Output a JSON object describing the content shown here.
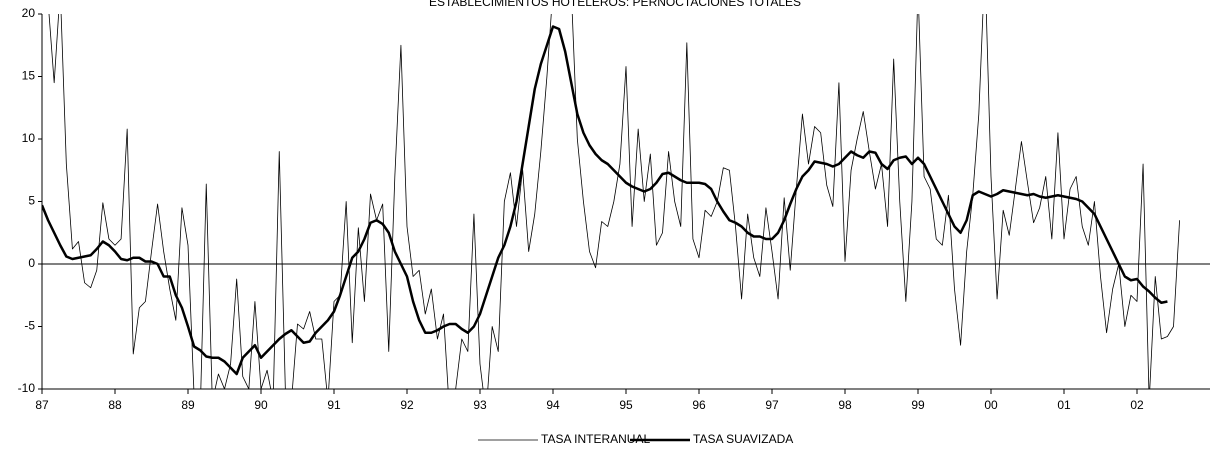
{
  "chart_data": {
    "type": "line",
    "title": "ESTABLECIMIENTOS HOTELEROS: PERNOCTACIONES TOTALES",
    "categories": [
      "87",
      null,
      null,
      null,
      null,
      null,
      null,
      null,
      null,
      null,
      null,
      null,
      "88",
      null,
      null,
      null,
      null,
      null,
      null,
      null,
      null,
      null,
      null,
      null,
      "89",
      null,
      null,
      null,
      null,
      null,
      null,
      null,
      null,
      null,
      null,
      null,
      "90",
      null,
      null,
      null,
      null,
      null,
      null,
      null,
      null,
      null,
      null,
      null,
      "91",
      null,
      null,
      null,
      null,
      null,
      null,
      null,
      null,
      null,
      null,
      null,
      "92",
      null,
      null,
      null,
      null,
      null,
      null,
      null,
      null,
      null,
      null,
      null,
      "93",
      null,
      null,
      null,
      null,
      null,
      null,
      null,
      null,
      null,
      null,
      null,
      "94",
      null,
      null,
      null,
      null,
      null,
      null,
      null,
      null,
      null,
      null,
      null,
      "95",
      null,
      null,
      null,
      null,
      null,
      null,
      null,
      null,
      null,
      null,
      null,
      "96",
      null,
      null,
      null,
      null,
      null,
      null,
      null,
      null,
      null,
      null,
      null,
      "97",
      null,
      null,
      null,
      null,
      null,
      null,
      null,
      null,
      null,
      null,
      null,
      "98",
      null,
      null,
      null,
      null,
      null,
      null,
      null,
      null,
      null,
      null,
      null,
      "99",
      null,
      null,
      null,
      null,
      null,
      null,
      null,
      null,
      null,
      null,
      null,
      "00",
      null,
      null,
      null,
      null,
      null,
      null,
      null,
      null,
      null,
      null,
      null,
      "01",
      null,
      null,
      null,
      null,
      null,
      null,
      null,
      null,
      null,
      null,
      null,
      "02",
      null,
      null,
      null,
      null,
      null,
      null,
      null
    ],
    "series": [
      {
        "name": "TASA INTERANUAL",
        "color": "#000000",
        "line_width": 0.8,
        "values": [
          24,
          21,
          14.5,
          22,
          8,
          1.2,
          1.8,
          -1.5,
          -1.9,
          -0.5,
          4.9,
          2,
          1.5,
          2,
          10.8,
          -7.2,
          -3.5,
          -3,
          1,
          4.8,
          1,
          -2,
          -4.5,
          4.5,
          1.5,
          -10.5,
          -12,
          6.4,
          -11,
          -8.8,
          -10,
          -8,
          -1.2,
          -9,
          -10,
          -3,
          -10,
          -8.5,
          -11,
          9,
          -10,
          -11,
          -4.8,
          -5.2,
          -3.8,
          -6,
          -6,
          -11,
          -3,
          -2.5,
          5,
          -6.3,
          2.9,
          -3,
          5.6,
          3.5,
          4.8,
          -7,
          7,
          17.5,
          3,
          -1,
          -0.5,
          -4,
          -2,
          -6,
          -4,
          -12,
          -10,
          -6,
          -7,
          4,
          -8,
          -12,
          -5,
          -7,
          5,
          7.3,
          3,
          7.6,
          1,
          4,
          9,
          15,
          22,
          30,
          24,
          22,
          10,
          5,
          1,
          -0.3,
          3.4,
          3,
          5,
          8,
          15.8,
          3,
          10.8,
          5,
          8.8,
          1.5,
          2.5,
          9,
          5,
          3,
          17.7,
          2,
          0.5,
          4.3,
          3.8,
          5,
          7.7,
          7.5,
          3,
          -2.8,
          4,
          0.5,
          -1,
          4.5,
          1,
          -2.8,
          5.3,
          -0.5,
          6,
          12,
          8,
          11,
          10.5,
          6.3,
          4.6,
          14.5,
          0.2,
          7.5,
          10,
          12.2,
          9,
          6,
          8,
          3,
          16.4,
          5,
          -3,
          5,
          22,
          7,
          6,
          2,
          1.5,
          5.5,
          -2,
          -6.5,
          1,
          5.5,
          12,
          24,
          7,
          -2.8,
          4.3,
          2.3,
          6,
          9.8,
          6.5,
          3.3,
          4.5,
          7,
          2,
          10.5,
          2,
          6,
          7,
          3,
          1.5,
          5,
          -1,
          -5.5,
          -2,
          0,
          -5,
          -2.5,
          -3,
          8,
          -11,
          -1,
          -6,
          -5.8,
          -5,
          3.5
        ]
      },
      {
        "name": "TASA SUAVIZADA",
        "color": "#000000",
        "line_width": 2.5,
        "values": [
          4.7,
          3.5,
          2.5,
          1.5,
          0.6,
          0.4,
          0.5,
          0.6,
          0.7,
          1.2,
          1.8,
          1.5,
          1,
          0.4,
          0.3,
          0.5,
          0.5,
          0.2,
          0.2,
          0,
          -1,
          -1,
          -2.5,
          -3.5,
          -5,
          -6.6,
          -6.9,
          -7.4,
          -7.5,
          -7.5,
          -7.8,
          -8.3,
          -8.8,
          -7.5,
          -7,
          -6.5,
          -7.5,
          -7,
          -6.5,
          -6,
          -5.6,
          -5.3,
          -5.8,
          -6.3,
          -6.2,
          -5.5,
          -5,
          -4.5,
          -3.8,
          -2.5,
          -1,
          0.5,
          1,
          2,
          3.3,
          3.5,
          3.2,
          2.5,
          1,
          0,
          -1,
          -3,
          -4.5,
          -5.5,
          -5.5,
          -5.3,
          -5,
          -4.8,
          -4.8,
          -5.2,
          -5.5,
          -5,
          -4,
          -2.5,
          -1,
          0.5,
          1.5,
          3,
          5,
          8,
          11,
          14,
          16,
          17.5,
          19,
          18.8,
          17,
          14.5,
          12,
          10.5,
          9.5,
          8.8,
          8.3,
          8,
          7.5,
          7,
          6.5,
          6.2,
          6,
          5.8,
          6,
          6.5,
          7.2,
          7.3,
          7,
          6.7,
          6.5,
          6.5,
          6.5,
          6.4,
          6,
          5,
          4.2,
          3.5,
          3.3,
          3,
          2.5,
          2.2,
          2.2,
          2,
          2,
          2.5,
          3.5,
          4.8,
          6,
          7,
          7.5,
          8.2,
          8.1,
          8,
          7.8,
          8,
          8.5,
          9,
          8.7,
          8.5,
          9,
          8.9,
          8,
          7.6,
          8.3,
          8.5,
          8.6,
          8,
          8.5,
          8,
          7,
          6,
          5,
          4,
          3,
          2.5,
          3.5,
          5.5,
          5.8,
          5.6,
          5.4,
          5.6,
          5.9,
          5.8,
          5.7,
          5.6,
          5.5,
          5.6,
          5.4,
          5.3,
          5.4,
          5.5,
          5.4,
          5.3,
          5.2,
          5,
          4.5,
          4,
          3,
          2,
          1,
          0,
          -1,
          -1.3,
          -1.2,
          -1.8,
          -2.2,
          -2.7,
          -3.1,
          -3,
          null,
          null
        ]
      }
    ],
    "ylim": [
      -10,
      20
    ],
    "yticks": [
      -10,
      -5,
      0,
      5,
      10,
      15,
      20
    ],
    "grid": false,
    "legend": "bottom"
  }
}
